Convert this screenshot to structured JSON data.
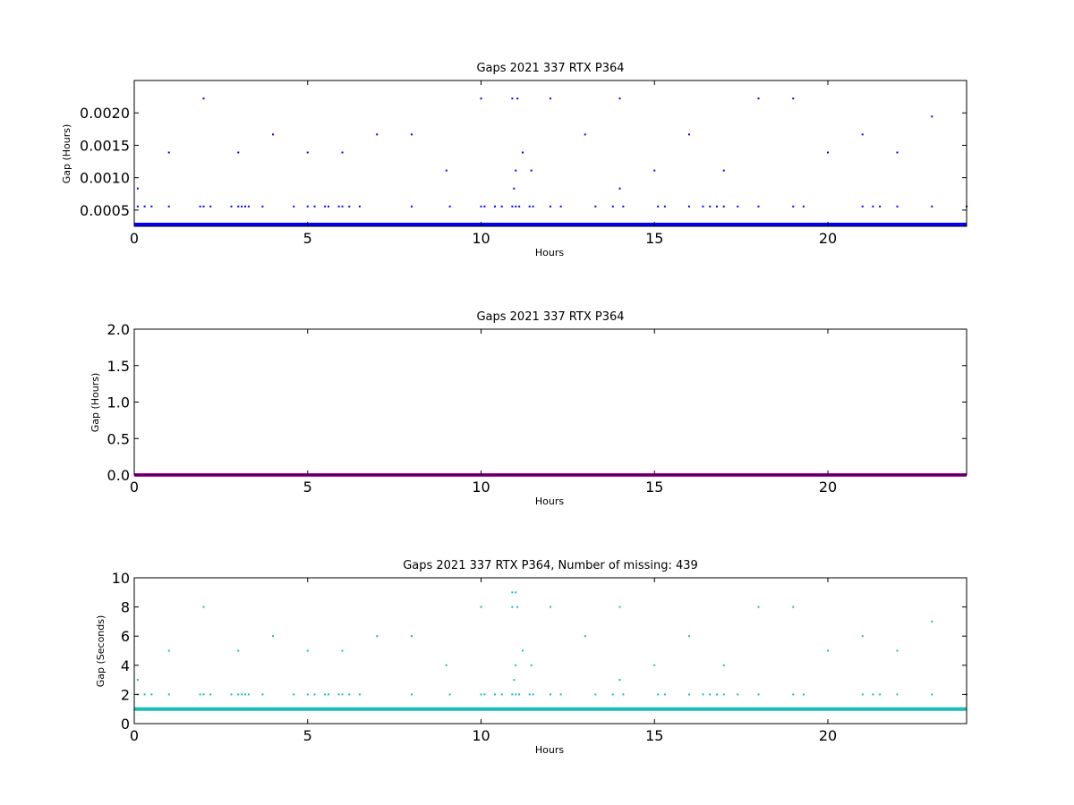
{
  "chart_data": [
    {
      "type": "scatter",
      "title": "Gaps 2021 337 RTX  P364",
      "xlabel": "Hours",
      "ylabel": "Gap (Hours)",
      "xlim": [
        0,
        24
      ],
      "ylim": [
        0.00025,
        0.0025
      ],
      "xticks": [
        0,
        5,
        10,
        15,
        20
      ],
      "xtick_labels": [
        "0",
        "5",
        "10",
        "15",
        "20"
      ],
      "yticks": [
        0.0005,
        0.001,
        0.0015,
        0.002
      ],
      "ytick_labels": [
        "0.0005",
        "0.0010",
        "0.0015",
        "0.0020"
      ],
      "color": "#0000ff",
      "baseline": {
        "y": 0.000278,
        "from": 0,
        "to": 24
      },
      "series": [
        {
          "x": [
            0.1,
            1.0,
            2.0,
            3.0,
            4.0,
            5.0,
            6.0,
            7.0,
            8.0,
            9.0,
            10.0,
            10.9,
            10.95,
            11.0,
            11.05,
            11.2,
            11.45,
            12.0,
            13.0,
            14.0,
            14.0,
            15.0,
            16.0,
            17.0,
            18.0,
            19.0,
            20.0,
            21.0,
            22.0,
            23.0,
            0.1,
            0.3,
            0.5,
            1.0,
            1.9,
            2.0,
            2.2,
            2.8,
            3.0,
            3.1,
            3.2,
            3.3,
            3.7,
            4.6,
            5.0,
            5.2,
            5.5,
            5.6,
            5.9,
            6.0,
            6.2,
            6.5,
            8.0,
            9.1,
            10.0,
            10.1,
            10.4,
            10.6,
            10.9,
            11.0,
            11.1,
            11.4,
            11.5,
            12.0,
            12.3,
            13.3,
            13.8,
            14.1,
            15.1,
            15.3,
            16.0,
            16.4,
            16.6,
            16.8,
            17.0,
            17.4,
            18.0,
            19.0,
            19.3,
            21.0,
            21.3,
            21.5,
            22.0,
            23.0,
            24.0
          ],
          "y": [
            0.000833,
            0.001389,
            0.002222,
            0.001389,
            0.001667,
            0.001389,
            0.001389,
            0.001667,
            0.001667,
            0.001111,
            0.002222,
            0.002222,
            0.000833,
            0.001111,
            0.002222,
            0.001389,
            0.001111,
            0.002222,
            0.001667,
            0.002222,
            0.000833,
            0.001111,
            0.001667,
            0.001111,
            0.002222,
            0.002222,
            0.001389,
            0.001667,
            0.001389,
            0.001944,
            0.000556,
            0.000556,
            0.000556,
            0.000556,
            0.000556,
            0.000556,
            0.000556,
            0.000556,
            0.000556,
            0.000556,
            0.000556,
            0.000556,
            0.000556,
            0.000556,
            0.000556,
            0.000556,
            0.000556,
            0.000556,
            0.000556,
            0.000556,
            0.000556,
            0.000556,
            0.000556,
            0.000556,
            0.000556,
            0.000556,
            0.000556,
            0.000556,
            0.000556,
            0.000556,
            0.000556,
            0.000556,
            0.000556,
            0.000556,
            0.000556,
            0.000556,
            0.000556,
            0.000556,
            0.000556,
            0.000556,
            0.000556,
            0.000556,
            0.000556,
            0.000556,
            0.000556,
            0.000556,
            0.000556,
            0.000556,
            0.000556,
            0.000556,
            0.000556,
            0.000556,
            0.000556,
            0.000556,
            0.000556
          ]
        }
      ]
    },
    {
      "type": "scatter",
      "title": "Gaps 2021 337 RTX  P364",
      "xlabel": "Hours",
      "ylabel": "Gap (Hours)",
      "xlim": [
        0,
        24
      ],
      "ylim": [
        0,
        2.0
      ],
      "xticks": [
        0,
        5,
        10,
        15,
        20
      ],
      "xtick_labels": [
        "0",
        "5",
        "10",
        "15",
        "20"
      ],
      "yticks": [
        0,
        0.5,
        1.0,
        1.5,
        2.0
      ],
      "ytick_labels": [
        "0.0",
        "0.5",
        "1.0",
        "1.5",
        "2.0"
      ],
      "color": "#b000b0",
      "baseline": {
        "y": 0.0,
        "from": 0,
        "to": 24
      },
      "series": [
        {
          "x": [],
          "y": []
        }
      ]
    },
    {
      "type": "scatter",
      "title": "Gaps 2021 337 RTX  P364, Number of missing: 439",
      "xlabel": "Hours",
      "ylabel": "Gap (Seconds)",
      "xlim": [
        0,
        24
      ],
      "ylim": [
        0,
        10
      ],
      "xticks": [
        0,
        5,
        10,
        15,
        20
      ],
      "xtick_labels": [
        "0",
        "5",
        "10",
        "15",
        "20"
      ],
      "yticks": [
        0,
        2,
        4,
        6,
        8,
        10
      ],
      "ytick_labels": [
        "0",
        "2",
        "4",
        "6",
        "8",
        "10"
      ],
      "color": "#1abcb4",
      "baseline": {
        "y": 1,
        "from": 0,
        "to": 24
      },
      "series": [
        {
          "x": [
            0.1,
            1.0,
            2.0,
            3.0,
            4.0,
            5.0,
            6.0,
            7.0,
            8.0,
            9.0,
            10.0,
            10.9,
            10.95,
            11.0,
            11.05,
            11.2,
            11.45,
            12.0,
            13.0,
            14.0,
            14.0,
            15.0,
            16.0,
            17.0,
            18.0,
            19.0,
            20.0,
            21.0,
            22.0,
            23.0,
            0.1,
            0.3,
            0.5,
            1.0,
            1.9,
            2.0,
            2.2,
            2.8,
            3.0,
            3.1,
            3.2,
            3.3,
            3.7,
            4.6,
            5.0,
            5.2,
            5.5,
            5.6,
            5.9,
            6.0,
            6.2,
            6.5,
            8.0,
            9.1,
            10.0,
            10.1,
            10.4,
            10.6,
            10.9,
            11.0,
            11.1,
            11.4,
            11.5,
            12.0,
            12.3,
            13.3,
            13.8,
            14.1,
            15.1,
            15.3,
            16.0,
            16.4,
            16.6,
            16.8,
            17.0,
            17.4,
            18.0,
            19.0,
            19.3,
            21.0,
            21.3,
            21.5,
            22.0,
            23.0,
            24.0,
            10.9,
            11.0
          ],
          "y": [
            3,
            5,
            8,
            5,
            6,
            5,
            5,
            6,
            6,
            4,
            8,
            8,
            3,
            4,
            8,
            5,
            4,
            8,
            6,
            8,
            3,
            4,
            6,
            4,
            8,
            8,
            5,
            6,
            5,
            7,
            2,
            2,
            2,
            2,
            2,
            2,
            2,
            2,
            2,
            2,
            2,
            2,
            2,
            2,
            2,
            2,
            2,
            2,
            2,
            2,
            2,
            2,
            2,
            2,
            2,
            2,
            2,
            2,
            2,
            2,
            2,
            2,
            2,
            2,
            2,
            2,
            2,
            2,
            2,
            2,
            2,
            2,
            2,
            2,
            2,
            2,
            2,
            2,
            2,
            2,
            2,
            2,
            2,
            2,
            2,
            9,
            9
          ]
        }
      ]
    }
  ]
}
